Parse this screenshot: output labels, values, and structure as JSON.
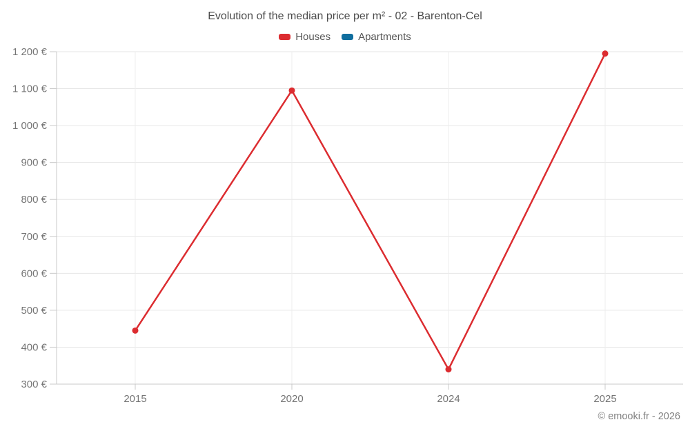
{
  "header": {
    "title": "Evolution of the median price per m² - 02 - Barenton-Cel"
  },
  "legend": {
    "items": [
      {
        "label": "Houses",
        "color": "#dc2c30"
      },
      {
        "label": "Apartments",
        "color": "#106e9e"
      }
    ]
  },
  "chart_data": {
    "type": "line",
    "title": "Evolution of the median price per m² - 02 - Barenton-Cel",
    "categories": [
      "2015",
      "2020",
      "2024",
      "2025"
    ],
    "series": [
      {
        "name": "Houses",
        "color": "#dc2c30",
        "values": [
          445,
          1095,
          340,
          1195
        ]
      },
      {
        "name": "Apartments",
        "color": "#106e9e",
        "values": []
      }
    ],
    "y_ticks": [
      300,
      400,
      500,
      600,
      700,
      800,
      900,
      1000,
      1100,
      1200
    ],
    "y_tick_labels": [
      "300 €",
      "400 €",
      "500 €",
      "600 €",
      "700 €",
      "800 €",
      "900 €",
      "1 000 €",
      "1 100 €",
      "1 200 €"
    ],
    "ylim": [
      300,
      1200
    ],
    "unit": "€",
    "grid": true,
    "legend_position": "top"
  },
  "footer": {
    "credit": "© emooki.fr - 2026"
  },
  "colors": {
    "grid_horizontal": "#e6e6e6",
    "grid_vertical": "#ededed",
    "axis": "#c9c9c9",
    "title_text": "#4c4c4c",
    "axis_text": "#757575",
    "footer_text": "#7f7f7f"
  }
}
